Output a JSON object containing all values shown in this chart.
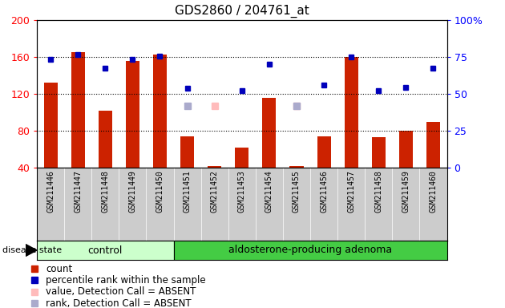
{
  "title": "GDS2860 / 204761_at",
  "samples": [
    "GSM211446",
    "GSM211447",
    "GSM211448",
    "GSM211449",
    "GSM211450",
    "GSM211451",
    "GSM211452",
    "GSM211453",
    "GSM211454",
    "GSM211455",
    "GSM211456",
    "GSM211457",
    "GSM211458",
    "GSM211459",
    "GSM211460"
  ],
  "bar_values": [
    132,
    165,
    102,
    156,
    163,
    74,
    42,
    62,
    116,
    42,
    74,
    160,
    73,
    80,
    90
  ],
  "blue_values": [
    157,
    163,
    148,
    157,
    161,
    126,
    null,
    124,
    152,
    null,
    130,
    160,
    124,
    127,
    148
  ],
  "absent_value": [
    null,
    null,
    null,
    null,
    null,
    null,
    107,
    null,
    null,
    107,
    null,
    null,
    null,
    null,
    null
  ],
  "absent_rank": [
    null,
    null,
    null,
    null,
    null,
    107,
    null,
    null,
    null,
    107,
    null,
    null,
    null,
    null,
    null
  ],
  "control_count": 5,
  "ylim_left": [
    40,
    200
  ],
  "ylim_right": [
    0,
    100
  ],
  "bar_color": "#cc2200",
  "blue_color": "#0000bb",
  "absent_value_color": "#ffbbbb",
  "absent_rank_color": "#aaaacc",
  "control_bg": "#ccffcc",
  "adenoma_bg": "#44cc44",
  "tick_bg": "#cccccc",
  "control_label": "control",
  "adenoma_label": "aldosterone-producing adenoma",
  "disease_state_label": "disease state",
  "legend": [
    {
      "label": "count",
      "color": "#cc2200"
    },
    {
      "label": "percentile rank within the sample",
      "color": "#0000bb"
    },
    {
      "label": "value, Detection Call = ABSENT",
      "color": "#ffbbbb"
    },
    {
      "label": "rank, Detection Call = ABSENT",
      "color": "#aaaacc"
    }
  ]
}
